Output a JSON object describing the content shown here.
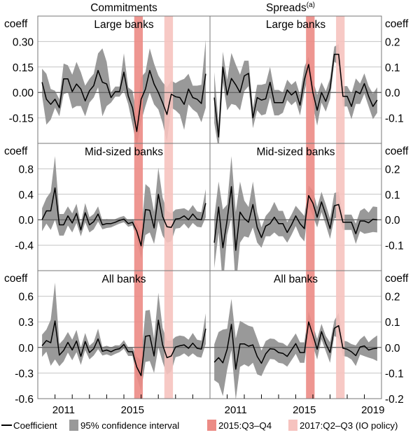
{
  "chart_data": {
    "type": "line",
    "column_titles": [
      "Commitments",
      "Spreads"
    ],
    "spreads_superscript": "(a)",
    "y_unit_label": "coeff",
    "x_start": 2010.25,
    "x_step": 0.25,
    "xlim": [
      2010,
      2020
    ],
    "x_tick_labels": {
      "left": [
        "2011",
        "2015"
      ],
      "right": [
        "2011",
        "2015",
        "2019"
      ]
    },
    "bands": [
      {
        "label": "2015:Q3–Q4",
        "from": 2015.6,
        "to": 2016.1,
        "color": "#ec8b85"
      },
      {
        "label": "2017:Q2–Q3 (IO policy)",
        "from": 2017.35,
        "to": 2017.85,
        "color": "#f6c3bf"
      }
    ],
    "legend": {
      "coefficient": "Coefficient",
      "ci": "95% confidence interval",
      "band1": "2015:Q3–Q4",
      "band2": "2017:Q2–Q3 (IO policy)"
    },
    "colors": {
      "line": "#000000",
      "ci": "#999999",
      "grid": "#c4c4c4",
      "zero": "#555555",
      "frame": "#777777"
    },
    "panels": [
      {
        "column": "left",
        "row": 0,
        "title": "Large banks",
        "ylim": [
          -0.3,
          0.45
        ],
        "yticks": [
          0.3,
          0.15,
          0.0,
          -0.15
        ],
        "ytick_labels": [
          "0.30",
          "0.15",
          "0.00",
          "-0.15"
        ],
        "values": [
          0.06,
          -0.04,
          -0.07,
          -0.04,
          -0.09,
          0.08,
          0.08,
          0.005,
          0.05,
          0.02,
          -0.05,
          0.01,
          0.04,
          0.13,
          0.06,
          0.05,
          -0.03,
          0.005,
          0.005,
          0.12,
          -0.02,
          -0.09,
          -0.23,
          -0.04,
          0.02,
          0.13,
          0.05,
          0.0,
          -0.06,
          -0.13,
          -0.01,
          -0.025,
          -0.03,
          -0.07,
          0.02,
          -0.03,
          -0.04,
          -0.065,
          0.11
        ],
        "ci_half": [
          0.08,
          0.15,
          0.09,
          0.05,
          0.05,
          0.09,
          0.08,
          0.1,
          0.13,
          0.1,
          0.09,
          0.07,
          0.07,
          0.1,
          0.2,
          0.13,
          0.03,
          0.03,
          0.03,
          0.11,
          0.05,
          0.1,
          0.09,
          0.13,
          0.1,
          0.13,
          0.12,
          0.1,
          0.12,
          0.16,
          0.08,
          0.08,
          0.1,
          0.15,
          0.09,
          0.07,
          0.08,
          0.11,
          0.2
        ]
      },
      {
        "column": "right",
        "row": 0,
        "title": "Large banks",
        "ylim": [
          -0.2,
          0.3
        ],
        "yticks": [
          0.2,
          0.1,
          0.0,
          -0.1
        ],
        "ytick_labels": [
          "0.2",
          "0.1",
          "0.0",
          "-0.1"
        ],
        "values": [
          -0.02,
          -0.175,
          0.1,
          -0.01,
          0.055,
          0.03,
          0.0,
          0.065,
          0.075,
          -0.1,
          -0.02,
          -0.03,
          -0.025,
          0.04,
          -0.04,
          -0.04,
          -0.04,
          0.01,
          -0.01,
          0.005,
          -0.05,
          0.05,
          0.11,
          0.0,
          -0.07,
          0.0,
          -0.035,
          0.015,
          0.15,
          0.15,
          -0.015,
          -0.015,
          -0.055,
          0.005,
          -0.005,
          0.035,
          -0.015,
          -0.055,
          -0.03
        ],
        "ci_half": [
          0.1,
          0.05,
          0.06,
          0.06,
          0.1,
          0.08,
          0.07,
          0.06,
          0.05,
          0.04,
          0.05,
          0.06,
          0.06,
          0.06,
          0.05,
          0.05,
          0.04,
          0.04,
          0.04,
          0.04,
          0.04,
          0.05,
          0.03,
          0.05,
          0.06,
          0.04,
          0.04,
          0.04,
          0.03,
          0.04,
          0.04,
          0.04,
          0.05,
          0.05,
          0.04,
          0.04,
          0.04,
          0.05,
          0.05
        ]
      },
      {
        "column": "left",
        "row": 1,
        "title": "Mid-sized banks",
        "ylim": [
          -0.8,
          1.2
        ],
        "yticks": [
          0.8,
          0.4,
          0.0,
          -0.4
        ],
        "ytick_labels": [
          "0.8",
          "0.4",
          "0.0",
          "-0.4"
        ],
        "values": [
          0.0,
          0.14,
          0.14,
          0.5,
          -0.08,
          -0.08,
          0.06,
          -0.05,
          0.1,
          -0.16,
          0.11,
          -0.08,
          -0.03,
          0.09,
          -0.08,
          -0.06,
          -0.06,
          -0.04,
          -0.01,
          0.01,
          -0.06,
          -0.04,
          -0.18,
          -0.41,
          0.16,
          0.15,
          -0.13,
          0.4,
          0.05,
          -0.11,
          -0.12,
          0.01,
          0.02,
          0.06,
          0.0,
          0.09,
          0.01,
          0.0,
          0.26
        ],
        "ci_half": [
          0.18,
          0.2,
          0.3,
          0.5,
          0.17,
          0.17,
          0.15,
          0.15,
          0.15,
          0.1,
          0.15,
          0.12,
          0.12,
          0.12,
          0.07,
          0.07,
          0.06,
          0.05,
          0.05,
          0.05,
          0.05,
          0.05,
          0.12,
          0.2,
          0.4,
          0.35,
          0.25,
          0.42,
          0.3,
          0.25,
          0.22,
          0.15,
          0.15,
          0.12,
          0.14,
          0.14,
          0.12,
          0.12,
          0.22
        ]
      },
      {
        "column": "right",
        "row": 1,
        "title": "Mid-sized banks",
        "ylim": [
          -0.2,
          0.3
        ],
        "yticks": [
          0.2,
          0.1,
          0.0,
          -0.1
        ],
        "ytick_labels": [
          "0.2",
          "0.1",
          "0.0",
          "-0.1"
        ],
        "values": [
          -0.09,
          0.05,
          -0.11,
          0.0,
          0.13,
          -0.12,
          0.03,
          0.005,
          -0.01,
          0.06,
          -0.03,
          -0.07,
          -0.025,
          -0.015,
          0.01,
          -0.015,
          -0.015,
          -0.05,
          -0.02,
          0.015,
          -0.015,
          -0.035,
          0.095,
          0.065,
          0.01,
          0.07,
          0.02,
          -0.035,
          0.055,
          0.06,
          -0.01,
          -0.01,
          -0.01,
          -0.055,
          -0.005,
          -0.005,
          -0.012,
          0.002,
          0.0
        ],
        "ci_half": [
          0.1,
          0.1,
          0.15,
          0.06,
          0.12,
          0.15,
          0.12,
          0.07,
          0.06,
          0.09,
          0.06,
          0.04,
          0.04,
          0.05,
          0.06,
          0.05,
          0.05,
          0.04,
          0.04,
          0.04,
          0.05,
          0.05,
          0.04,
          0.05,
          0.04,
          0.04,
          0.04,
          0.04,
          0.05,
          0.05,
          0.03,
          0.03,
          0.03,
          0.04,
          0.04,
          0.05,
          0.04,
          0.05,
          0.05
        ]
      },
      {
        "column": "left",
        "row": 2,
        "title": "All banks",
        "ylim": [
          -0.6,
          0.9
        ],
        "yticks": [
          0.6,
          0.3,
          0.0,
          -0.3,
          -0.6
        ],
        "ytick_labels": [
          "0.6",
          "0.3",
          "0.0",
          "-0.3",
          "-0.6"
        ],
        "values": [
          0.02,
          0.08,
          0.055,
          0.31,
          -0.09,
          -0.035,
          0.06,
          -0.03,
          0.075,
          -0.105,
          0.07,
          -0.06,
          -0.015,
          0.1,
          -0.045,
          -0.03,
          -0.05,
          -0.025,
          -0.015,
          0.035,
          -0.05,
          -0.05,
          -0.23,
          -0.33,
          0.13,
          0.14,
          -0.1,
          0.32,
          0.03,
          -0.12,
          -0.1,
          0.005,
          0.02,
          0.03,
          -0.01,
          0.05,
          -0.01,
          -0.02,
          0.22
        ],
        "ci_half": [
          0.13,
          0.13,
          0.27,
          0.45,
          0.13,
          0.13,
          0.12,
          0.12,
          0.13,
          0.1,
          0.1,
          0.08,
          0.08,
          0.12,
          0.05,
          0.05,
          0.05,
          0.05,
          0.04,
          0.05,
          0.05,
          0.05,
          0.12,
          0.18,
          0.3,
          0.3,
          0.2,
          0.32,
          0.2,
          0.2,
          0.18,
          0.12,
          0.12,
          0.1,
          0.1,
          0.12,
          0.1,
          0.1,
          0.18
        ]
      },
      {
        "column": "right",
        "row": 2,
        "title": "All banks",
        "ylim": [
          -0.2,
          0.3
        ],
        "yticks": [
          0.2,
          0.1,
          0.0,
          -0.1,
          -0.2
        ],
        "ytick_labels": [
          "0.2",
          "0.1",
          "0.0",
          "-0.1",
          "-0.2"
        ],
        "values": [
          -0.058,
          -0.04,
          -0.06,
          -0.007,
          0.09,
          -0.085,
          0.014,
          0.014,
          0.005,
          0.01,
          -0.035,
          -0.062,
          -0.025,
          -0.005,
          -0.007,
          -0.02,
          -0.023,
          -0.035,
          -0.01,
          0.015,
          -0.02,
          -0.02,
          0.1,
          0.048,
          -0.007,
          0.062,
          0.015,
          -0.02,
          0.075,
          0.085,
          -0.003,
          -0.007,
          -0.017,
          -0.032,
          0.002,
          0.006,
          -0.01,
          -0.005,
          -0.003
        ],
        "ci_half": [
          0.07,
          0.1,
          0.13,
          0.08,
          0.1,
          0.12,
          0.09,
          0.08,
          0.08,
          0.07,
          0.07,
          0.05,
          0.05,
          0.04,
          0.04,
          0.04,
          0.04,
          0.04,
          0.04,
          0.04,
          0.04,
          0.04,
          0.04,
          0.04,
          0.04,
          0.03,
          0.03,
          0.04,
          0.03,
          0.05,
          0.03,
          0.03,
          0.03,
          0.04,
          0.03,
          0.04,
          0.03,
          0.04,
          0.05
        ]
      }
    ]
  }
}
